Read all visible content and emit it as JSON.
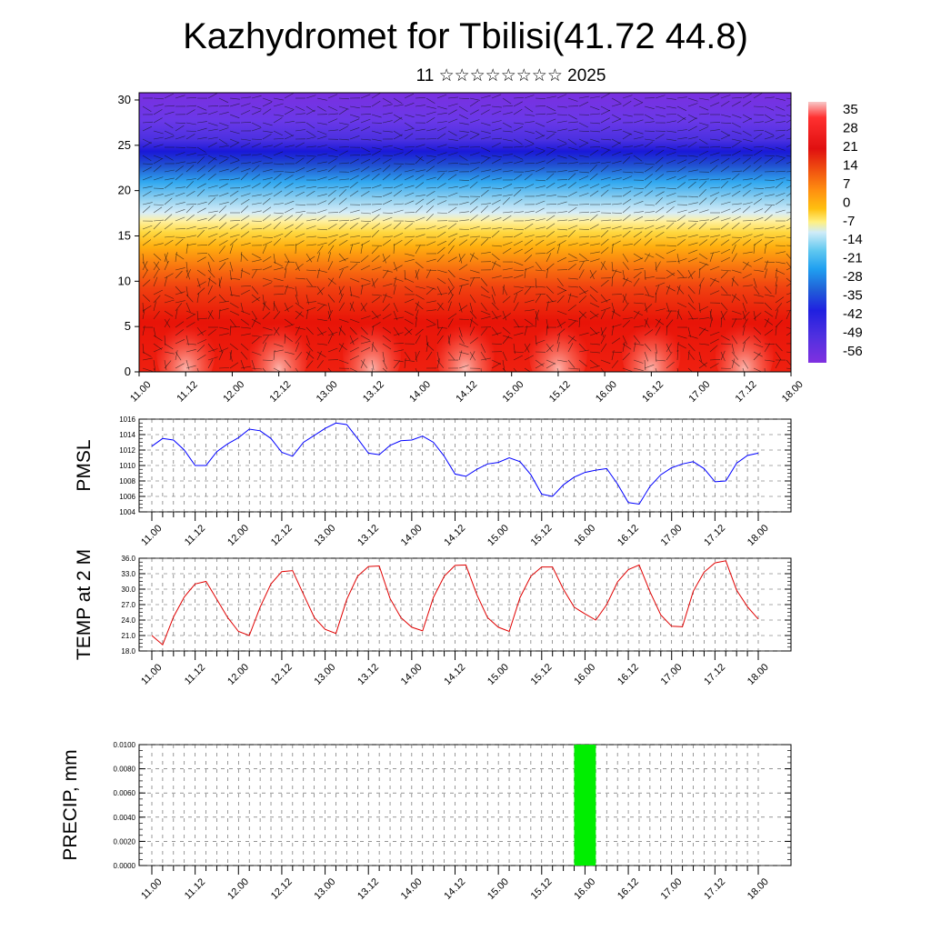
{
  "title": "Kazhydromet for Tbilisi(41.72 44.8)",
  "subtitle": "11 ☆☆☆☆☆☆☆☆ 2025",
  "chart_data": [
    {
      "type": "heatmap",
      "name": "cross-section",
      "x_tick_labels": [
        "11.00",
        "11.12",
        "12.00",
        "12.12",
        "13.00",
        "13.12",
        "14.00",
        "14.12",
        "15.00",
        "15.12",
        "16.00",
        "16.12",
        "17.00",
        "17.12",
        "18.00"
      ],
      "y_ticks": [
        0,
        5,
        10,
        15,
        20,
        25,
        30
      ],
      "ylim": [
        0,
        30.8
      ],
      "colorbar_labels": [
        "35",
        "28",
        "21",
        "14",
        "7",
        "0",
        "-7",
        "-14",
        "-21",
        "-28",
        "-35",
        "-42",
        "-49",
        "-56"
      ],
      "colorbar_colors": [
        "#ff3030",
        "#e01010",
        "#f05010",
        "#ff9010",
        "#ffc010",
        "#ffe060",
        "#f8f0c0",
        "#a0d8f0",
        "#30b8f0",
        "#2080d8",
        "#3050d8",
        "#3030e0",
        "#6040e8",
        "#8030e0"
      ],
      "has_wind_barbs": true
    },
    {
      "type": "line",
      "ylabel": "PMSL",
      "ylim": [
        1004,
        1016
      ],
      "y_ticks": [
        1004,
        1006,
        1008,
        1010,
        1012,
        1014,
        1016
      ],
      "x_tick_labels": [
        "11.00",
        "11.12",
        "12.00",
        "12.12",
        "13.00",
        "13.12",
        "14.00",
        "14.12",
        "15.00",
        "15.12",
        "16.00",
        "16.12",
        "17.00",
        "17.12",
        "18.00"
      ],
      "color": "#0000ff",
      "x_step_hours": 3,
      "values": [
        1012.5,
        1013.5,
        1013.3,
        1012.0,
        1010.0,
        1010.0,
        1011.8,
        1012.8,
        1013.6,
        1014.7,
        1014.5,
        1013.5,
        1011.7,
        1011.2,
        1013.0,
        1013.9,
        1014.8,
        1015.5,
        1015.3,
        1013.5,
        1011.6,
        1011.4,
        1012.6,
        1013.2,
        1013.3,
        1013.8,
        1013.0,
        1011.2,
        1008.9,
        1008.6,
        1009.5,
        1010.2,
        1010.4,
        1011.0,
        1010.5,
        1008.8,
        1006.3,
        1006.0,
        1007.5,
        1008.5,
        1009.1,
        1009.4,
        1009.6,
        1007.6,
        1005.2,
        1005.0,
        1007.3,
        1008.8,
        1009.7,
        1010.2,
        1010.5,
        1009.6,
        1007.9,
        1008.0,
        1010.3,
        1011.3,
        1011.6
      ]
    },
    {
      "type": "line",
      "ylabel": "TEMP at 2 M",
      "ylim": [
        18.0,
        36.0
      ],
      "y_ticks": [
        "18.0",
        "21.0",
        "24.0",
        "27.0",
        "30.0",
        "33.0",
        "36.0"
      ],
      "x_tick_labels": [
        "11.00",
        "11.12",
        "12.00",
        "12.12",
        "13.00",
        "13.12",
        "14.00",
        "14.12",
        "15.00",
        "15.12",
        "16.00",
        "16.12",
        "17.00",
        "17.12",
        "18.00"
      ],
      "color": "#e00000",
      "x_step_hours": 3,
      "values": [
        21.0,
        19.2,
        24.6,
        28.5,
        31.0,
        31.5,
        28.0,
        24.5,
        21.8,
        21.0,
        26.5,
        31.0,
        33.4,
        33.6,
        29.0,
        24.5,
        22.2,
        21.4,
        28.0,
        32.5,
        34.4,
        34.5,
        28.2,
        24.5,
        22.6,
        21.9,
        28.4,
        32.5,
        34.6,
        34.7,
        29.0,
        24.5,
        22.6,
        21.8,
        28.4,
        32.5,
        34.3,
        34.3,
        30.0,
        26.5,
        25.2,
        24.0,
        27.0,
        31.4,
        33.8,
        34.7,
        29.5,
        25.0,
        22.8,
        22.7,
        29.6,
        33.3,
        35.1,
        35.5,
        29.8,
        26.6,
        24.2
      ]
    },
    {
      "type": "bar",
      "ylabel": "PRECIP, mm",
      "ylim": [
        0,
        0.01
      ],
      "y_ticks": [
        "0.0000",
        "0.0020",
        "0.0040",
        "0.0060",
        "0.0080",
        "0.0100"
      ],
      "x_tick_labels": [
        "11.00",
        "11.12",
        "12.00",
        "12.12",
        "13.00",
        "13.12",
        "14.00",
        "14.12",
        "15.00",
        "15.12",
        "16.00",
        "16.12",
        "17.00",
        "17.12",
        "18.00"
      ],
      "color": "#00ee00",
      "bars": [
        {
          "start_hour": 117,
          "end_hour": 123,
          "value": 0.01
        }
      ]
    }
  ]
}
